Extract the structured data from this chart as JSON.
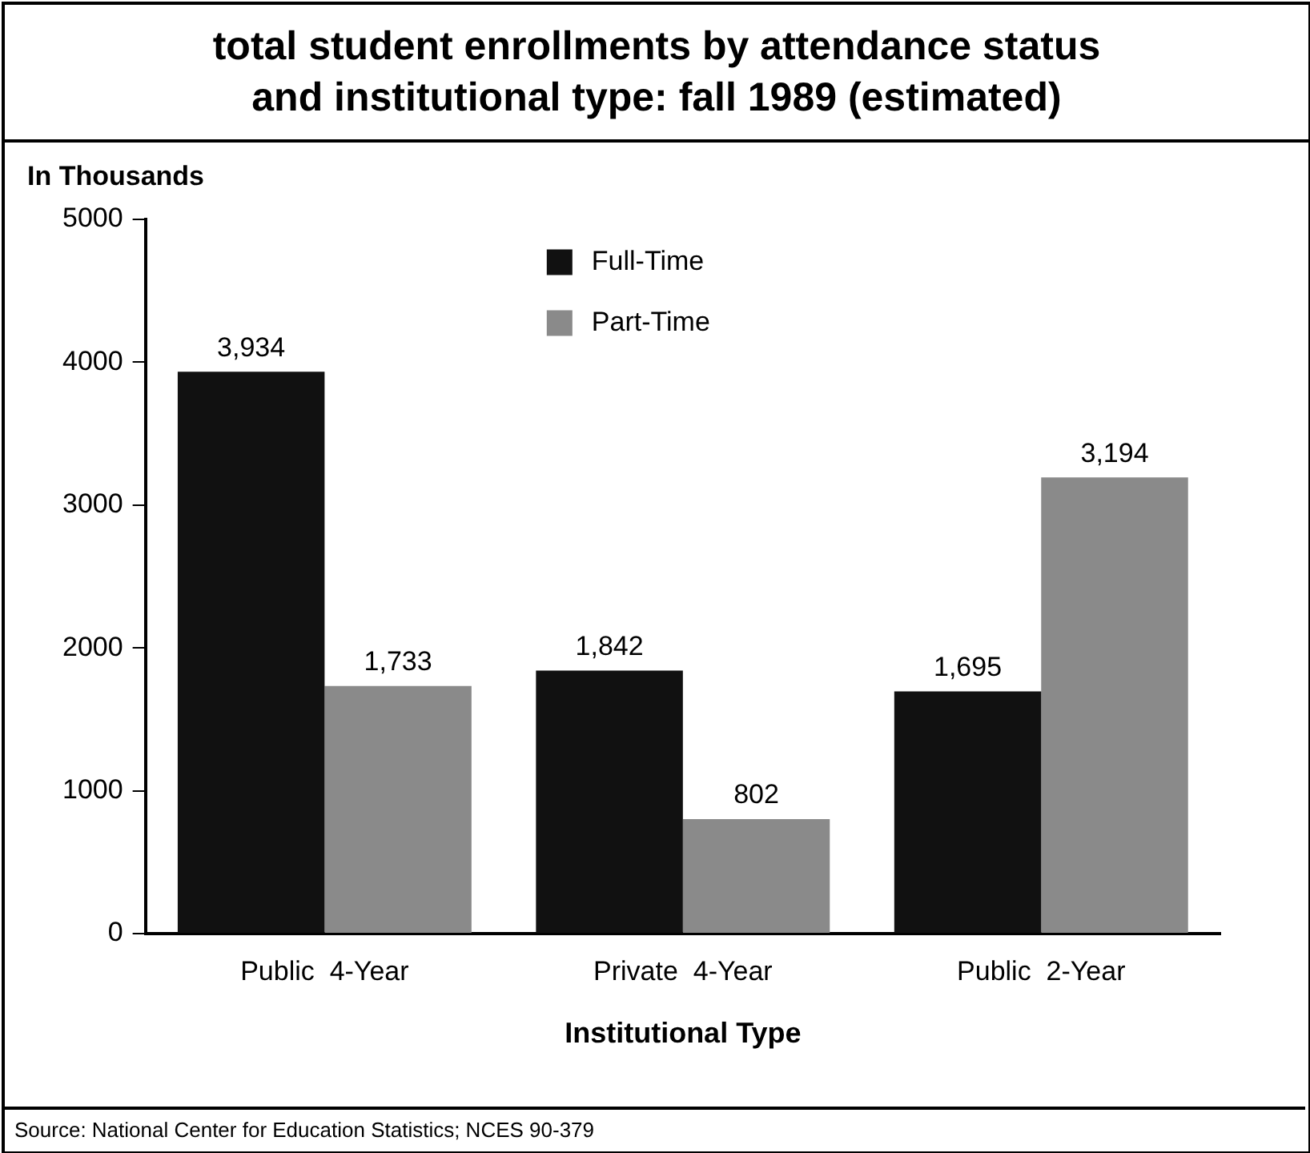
{
  "chart_data": {
    "type": "bar",
    "title": "total student enrollments by attendance status\nand institutional type:  fall 1989 (estimated)",
    "ylabel": "In Thousands",
    "xlabel": "Institutional Type",
    "categories": [
      "Public  4-Year",
      "Private  4-Year",
      "Public  2-Year"
    ],
    "series": [
      {
        "name": "Full-Time",
        "color": "#111111",
        "values": [
          3934,
          1842,
          1695
        ],
        "value_labels": [
          "3,934",
          "1,842",
          "1,695"
        ]
      },
      {
        "name": "Part-Time",
        "color": "#8a8a8a",
        "values": [
          1733,
          802,
          3194
        ],
        "value_labels": [
          "1,733",
          "802",
          "3,194"
        ]
      }
    ],
    "ylim": [
      0,
      5000
    ],
    "yticks": [
      0,
      1000,
      2000,
      3000,
      4000,
      5000
    ],
    "grid": false,
    "legend": "top",
    "annotations": [
      "Source:  National Center for Education Statistics; NCES 90-379"
    ]
  }
}
